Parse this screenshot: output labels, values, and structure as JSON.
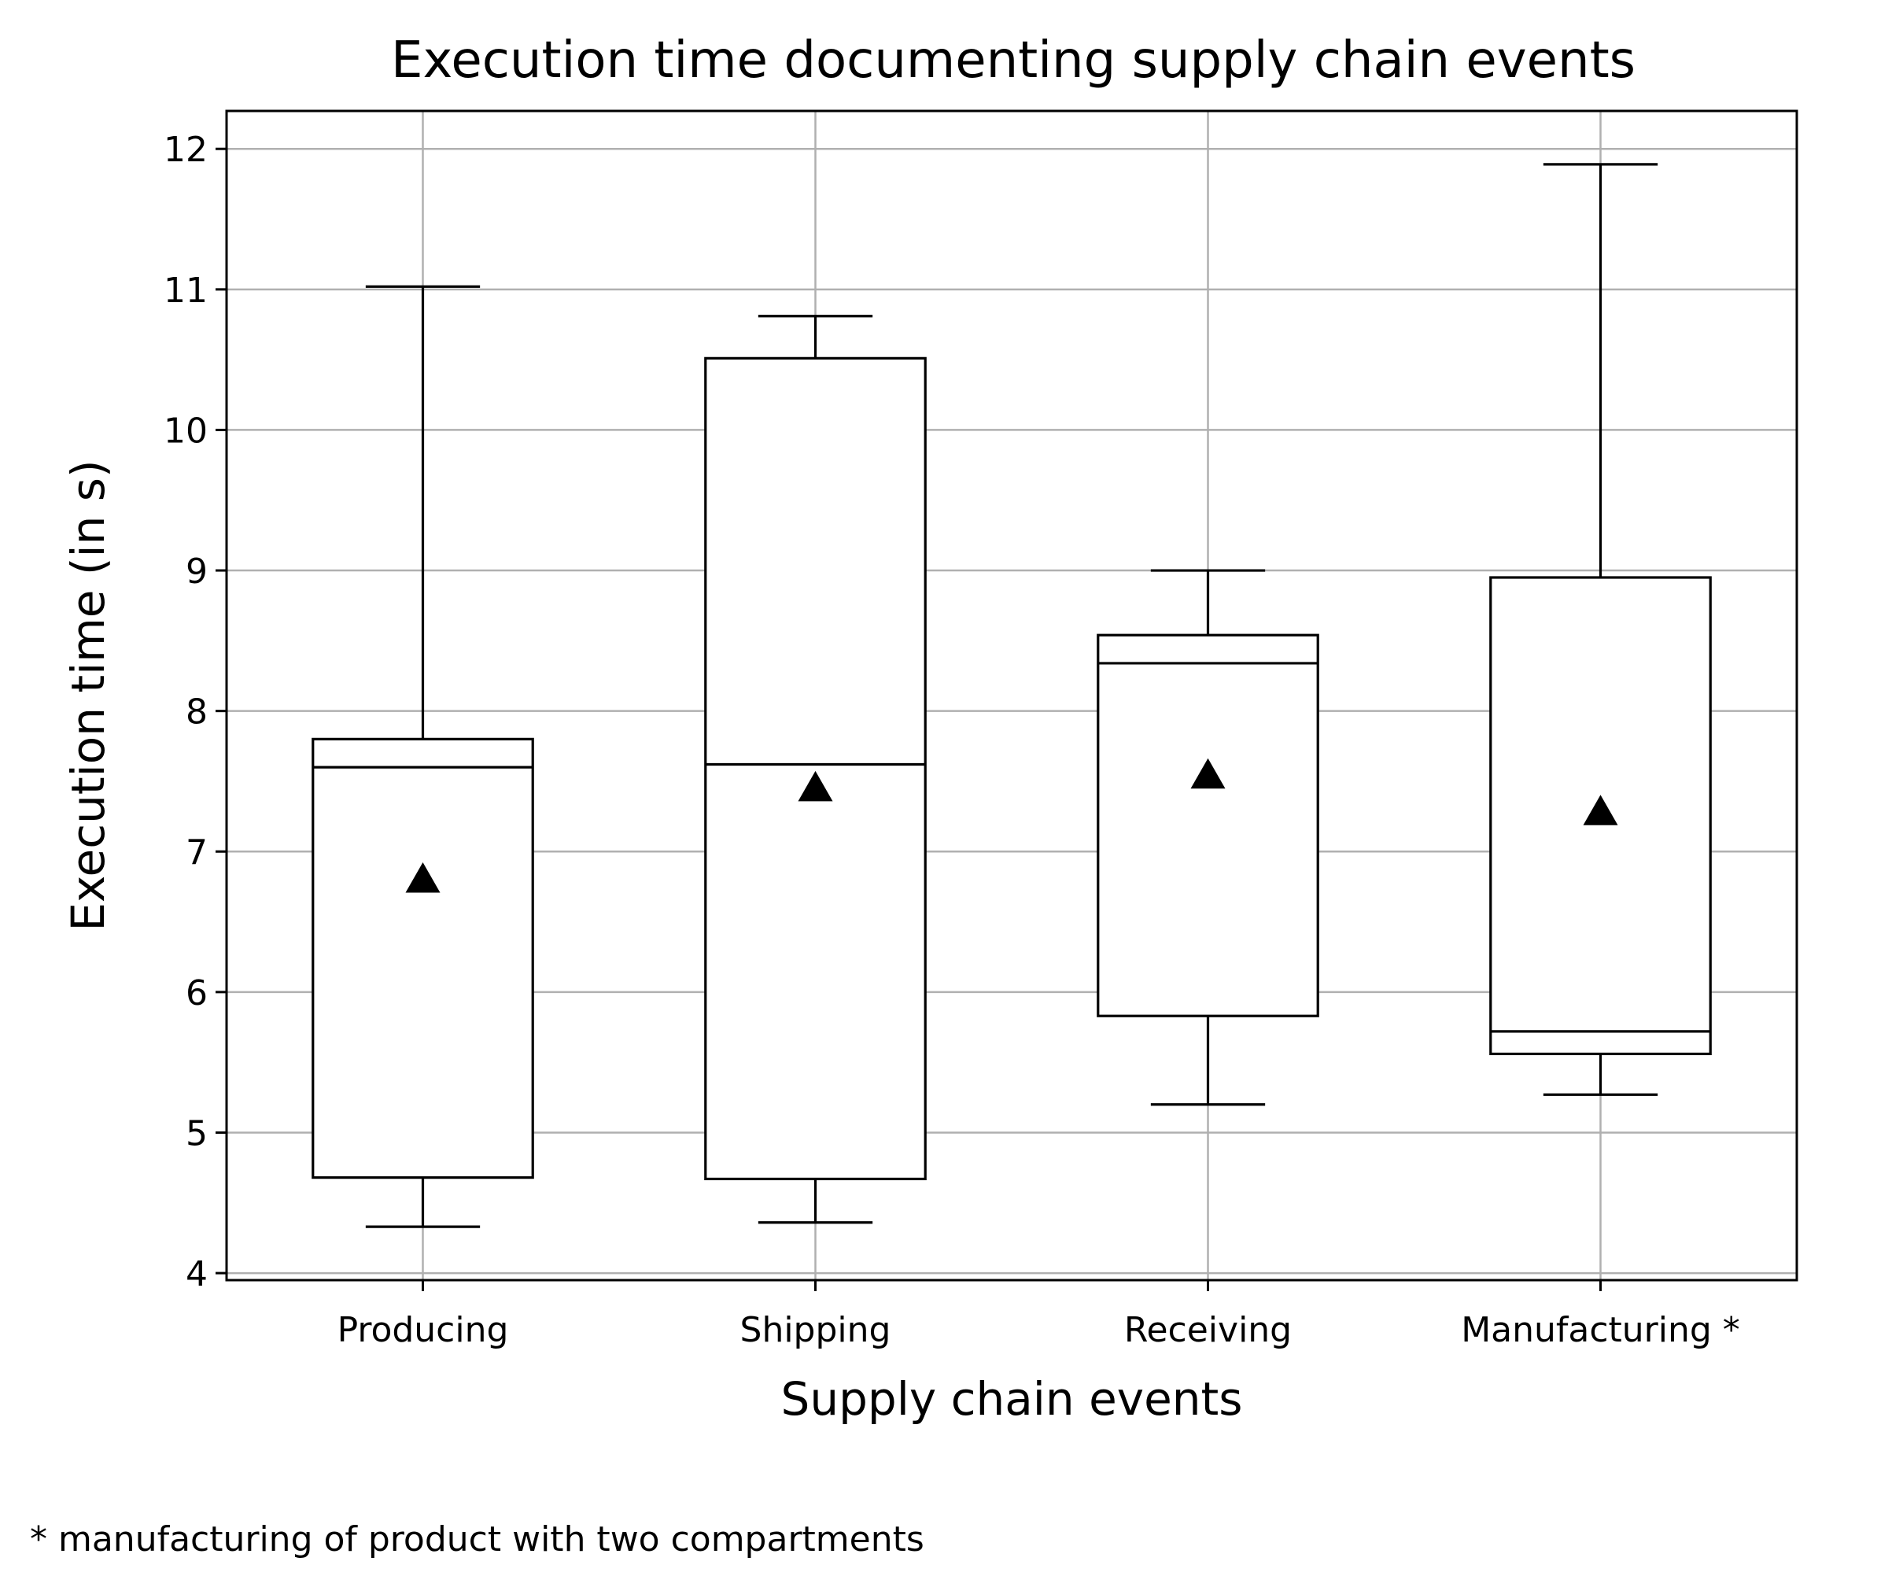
{
  "chart_data": {
    "type": "box",
    "title": "Execution time documenting supply chain events",
    "xlabel": "Supply chain events",
    "ylabel": "Execution time (in s)",
    "footnote": "* manufacturing of product with two compartments",
    "categories": [
      "Producing",
      "Shipping",
      "Receiving",
      "Manufacturing *"
    ],
    "ylim": [
      3.95,
      12.27
    ],
    "yticks": [
      4,
      5,
      6,
      7,
      8,
      9,
      10,
      11,
      12
    ],
    "grid": true,
    "boxes": [
      {
        "category": "Producing",
        "whisker_low": 4.33,
        "q1": 4.68,
        "median": 7.6,
        "q3": 7.8,
        "whisker_high": 11.02,
        "mean": 6.8
      },
      {
        "category": "Shipping",
        "whisker_low": 4.36,
        "q1": 4.67,
        "median": 7.62,
        "q3": 10.51,
        "whisker_high": 10.81,
        "mean": 7.45
      },
      {
        "category": "Receiving",
        "whisker_low": 5.2,
        "q1": 5.83,
        "median": 8.34,
        "q3": 8.54,
        "whisker_high": 9.0,
        "mean": 7.54
      },
      {
        "category": "Manufacturing *",
        "whisker_low": 5.27,
        "q1": 5.56,
        "median": 5.72,
        "q3": 8.95,
        "whisker_high": 11.89,
        "mean": 7.28
      }
    ],
    "colors": {
      "box": "#000000",
      "grid": "#b0b0b0",
      "mean_marker": "#000000"
    },
    "mean_marker": "triangle-up"
  }
}
